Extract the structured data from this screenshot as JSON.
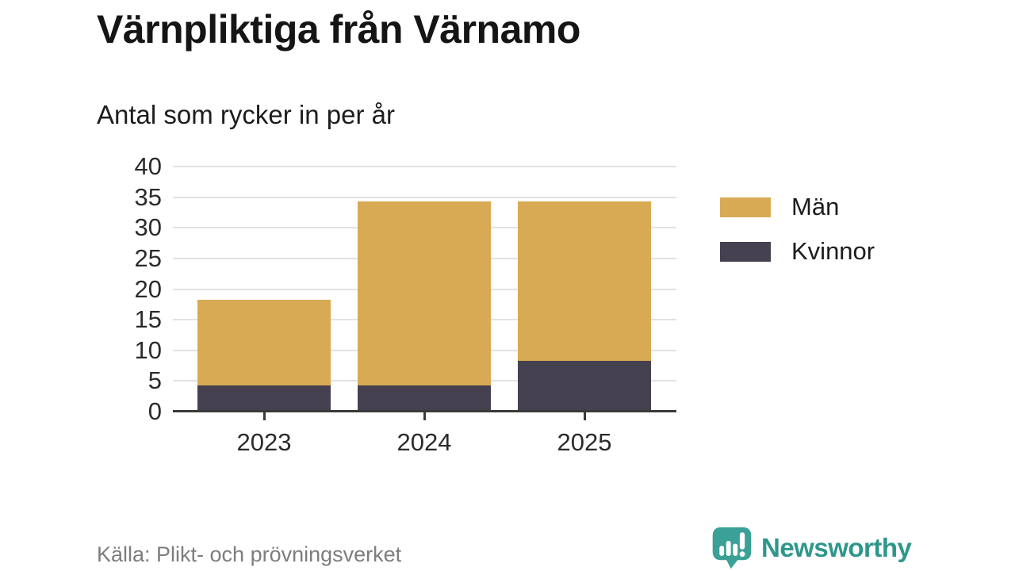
{
  "title": "Värnpliktiga från Värnamo",
  "subtitle": "Antal som rycker in per år",
  "source": "Källa: Plikt- och prövningsverket",
  "brand": {
    "name": "Newsworthy",
    "icon": "newsworthy-speech-bubble-chart-icon",
    "text_color": "#2E978C",
    "icon_color": "#3BA096"
  },
  "colors": {
    "men": "#D9AA54",
    "women": "#454150",
    "grid": "#E2E2E2",
    "axis": "#3A3A3A",
    "tick_text": "#2B2B2B"
  },
  "chart_data": {
    "type": "bar",
    "stacked": true,
    "title": "Värnpliktiga från Värnamo",
    "subtitle": "Antal som rycker in per år",
    "categories": [
      "2023",
      "2024",
      "2025"
    ],
    "series": [
      {
        "name": "Män",
        "color": "#D9AA54",
        "values": [
          14,
          30,
          26
        ]
      },
      {
        "name": "Kvinnor",
        "color": "#454150",
        "values": [
          4,
          4,
          8
        ]
      }
    ],
    "stack_order_bottom_to_top": [
      "Kvinnor",
      "Män"
    ],
    "totals": [
      18,
      34,
      34
    ],
    "xlabel": "",
    "ylabel": "",
    "ylim": [
      0,
      40
    ],
    "yticks": [
      0,
      5,
      10,
      15,
      20,
      25,
      30,
      35,
      40
    ],
    "grid": true,
    "legend_position": "right",
    "source": "Källa: Plikt- och prövningsverket"
  }
}
